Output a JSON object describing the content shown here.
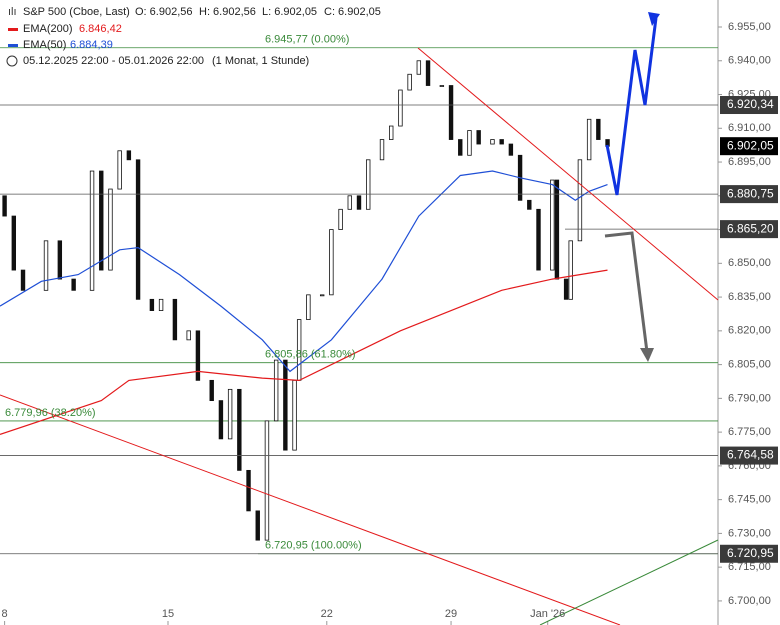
{
  "chart_data": {
    "type": "candlestick",
    "title": "S&P 500 (Cboe, Last)",
    "ohlc_labels": [
      "O: 6.902,56",
      "H: 6.902,56",
      "L: 6.902,05",
      "C: 6.902,05"
    ],
    "range_text": "05.12.2025 22:00 - 05.01.2026 22:00",
    "interval_text": "(1 Monat, 1 Stunde)",
    "xlim": [
      -1,
      155
    ],
    "ylim": [
      6689.3,
      6967
    ],
    "xticks": [
      {
        "value": 0,
        "label": "8"
      },
      {
        "value": 35.5,
        "label": "15"
      },
      {
        "value": 70,
        "label": "22"
      },
      {
        "value": 97,
        "label": "29"
      },
      {
        "value": 118,
        "label": "Jan '26"
      }
    ],
    "yticks": [
      {
        "value": 6700,
        "label": "6.700,00"
      },
      {
        "value": 6715,
        "label": "6.715,00"
      },
      {
        "value": 6730,
        "label": "6.730,00"
      },
      {
        "value": 6745,
        "label": "6.745,00"
      },
      {
        "value": 6760,
        "label": "6.760,00"
      },
      {
        "value": 6775,
        "label": "6.775,00"
      },
      {
        "value": 6790,
        "label": "6.790,00"
      },
      {
        "value": 6805,
        "label": "6.805,00"
      },
      {
        "value": 6820,
        "label": "6.820,00"
      },
      {
        "value": 6835,
        "label": "6.835,00"
      },
      {
        "value": 6850,
        "label": "6.850,00"
      },
      {
        "value": 6865,
        "label": "6.865,00"
      },
      {
        "value": 6880,
        "label": "6.880,00"
      },
      {
        "value": 6895,
        "label": "6.895,00"
      },
      {
        "value": 6910,
        "label": "6.910,00"
      },
      {
        "value": 6925,
        "label": "6.925,00"
      },
      {
        "value": 6940,
        "label": "6.940,00"
      },
      {
        "value": 6955,
        "label": "6.955,00"
      }
    ],
    "candles": {
      "x": [
        0,
        2,
        4,
        9,
        12,
        15,
        19,
        21,
        23,
        25,
        27,
        29,
        32,
        34,
        37,
        40,
        42,
        45,
        47,
        49,
        51,
        53,
        55,
        57,
        59,
        61,
        63,
        64,
        66,
        69,
        71,
        73,
        75,
        77,
        79,
        82,
        84,
        86,
        88,
        90,
        92,
        95,
        97,
        99,
        101,
        103,
        106,
        108,
        110,
        112,
        114,
        116,
        119,
        120,
        122,
        123,
        125,
        127,
        129,
        131
      ],
      "open": [
        6880,
        6871,
        6847,
        6838,
        6860,
        6843,
        6838,
        6891,
        6847,
        6883,
        6900,
        6896,
        6834,
        6829,
        6834,
        6816,
        6820,
        6798,
        6789,
        6772,
        6794,
        6758,
        6740,
        6727,
        6780,
        6807,
        6767,
        6798,
        6825,
        6836,
        6836,
        6865,
        6874,
        6880,
        6874,
        6896,
        6905,
        6911,
        6927,
        6934,
        6940,
        6929,
        6929,
        6905,
        6898,
        6909,
        6903,
        6905,
        6903,
        6898,
        6878,
        6874,
        6847,
        6887,
        6843,
        6834,
        6860,
        6896,
        6914,
        6905
      ],
      "close": [
        6871,
        6847,
        6838,
        6860,
        6843,
        6838,
        6891,
        6847,
        6883,
        6900,
        6896,
        6834,
        6829,
        6834,
        6816,
        6820,
        6798,
        6789,
        6772,
        6794,
        6758,
        6740,
        6727,
        6780,
        6807,
        6767,
        6798,
        6825,
        6836,
        6836,
        6865,
        6874,
        6880,
        6874,
        6896,
        6905,
        6911,
        6927,
        6934,
        6940,
        6929,
        6929,
        6905,
        6898,
        6909,
        6903,
        6905,
        6903,
        6898,
        6878,
        6874,
        6847,
        6887,
        6843,
        6834,
        6860,
        6896,
        6914,
        6905,
        6902
      ]
    },
    "series": [
      {
        "name": "EMA(200)",
        "last_label": "6.846,42",
        "color": "#e31a1c",
        "x": [
          -1,
          21,
          27,
          42,
          56,
          64,
          75,
          86,
          97,
          108,
          119,
          131
        ],
        "values": [
          6774,
          6789,
          6798,
          6802,
          6799,
          6798,
          6809,
          6820,
          6829,
          6838,
          6843,
          6847
        ]
      },
      {
        "name": "EMA(50)",
        "last_label": "6.884,39",
        "color": "#1f4fd6",
        "x": [
          -1,
          8,
          16,
          25,
          29,
          38,
          47,
          56,
          62,
          71,
          82,
          90,
          99,
          106,
          112,
          119,
          124,
          127,
          131
        ],
        "values": [
          6831,
          6842,
          6845,
          6856,
          6857,
          6845,
          6831,
          6816,
          6802,
          6816,
          6843,
          6871,
          6889,
          6891,
          6888,
          6885,
          6878,
          6882,
          6885
        ]
      }
    ],
    "levels": [
      {
        "value": 6920.34,
        "label": "6.920,34"
      },
      {
        "value": 6902.05,
        "label": "6.902,05"
      },
      {
        "value": 6880.75,
        "label": "6.880,75"
      },
      {
        "value": 6865.2,
        "label": "6.865,20"
      },
      {
        "value": 6764.58,
        "label": "6.764,58"
      },
      {
        "value": 6720.95,
        "label": "6.720,95"
      }
    ],
    "fib_levels": [
      {
        "value": 6945.77,
        "label": "6.945,77 (0.00%)"
      },
      {
        "value": 6805.86,
        "label": "6.805,86 (61.80%)"
      },
      {
        "value": 6779.96,
        "label": "6.779,96 (38.20%)"
      },
      {
        "value": 6720.95,
        "label": "6.720,95 (100.00%)"
      }
    ]
  }
}
